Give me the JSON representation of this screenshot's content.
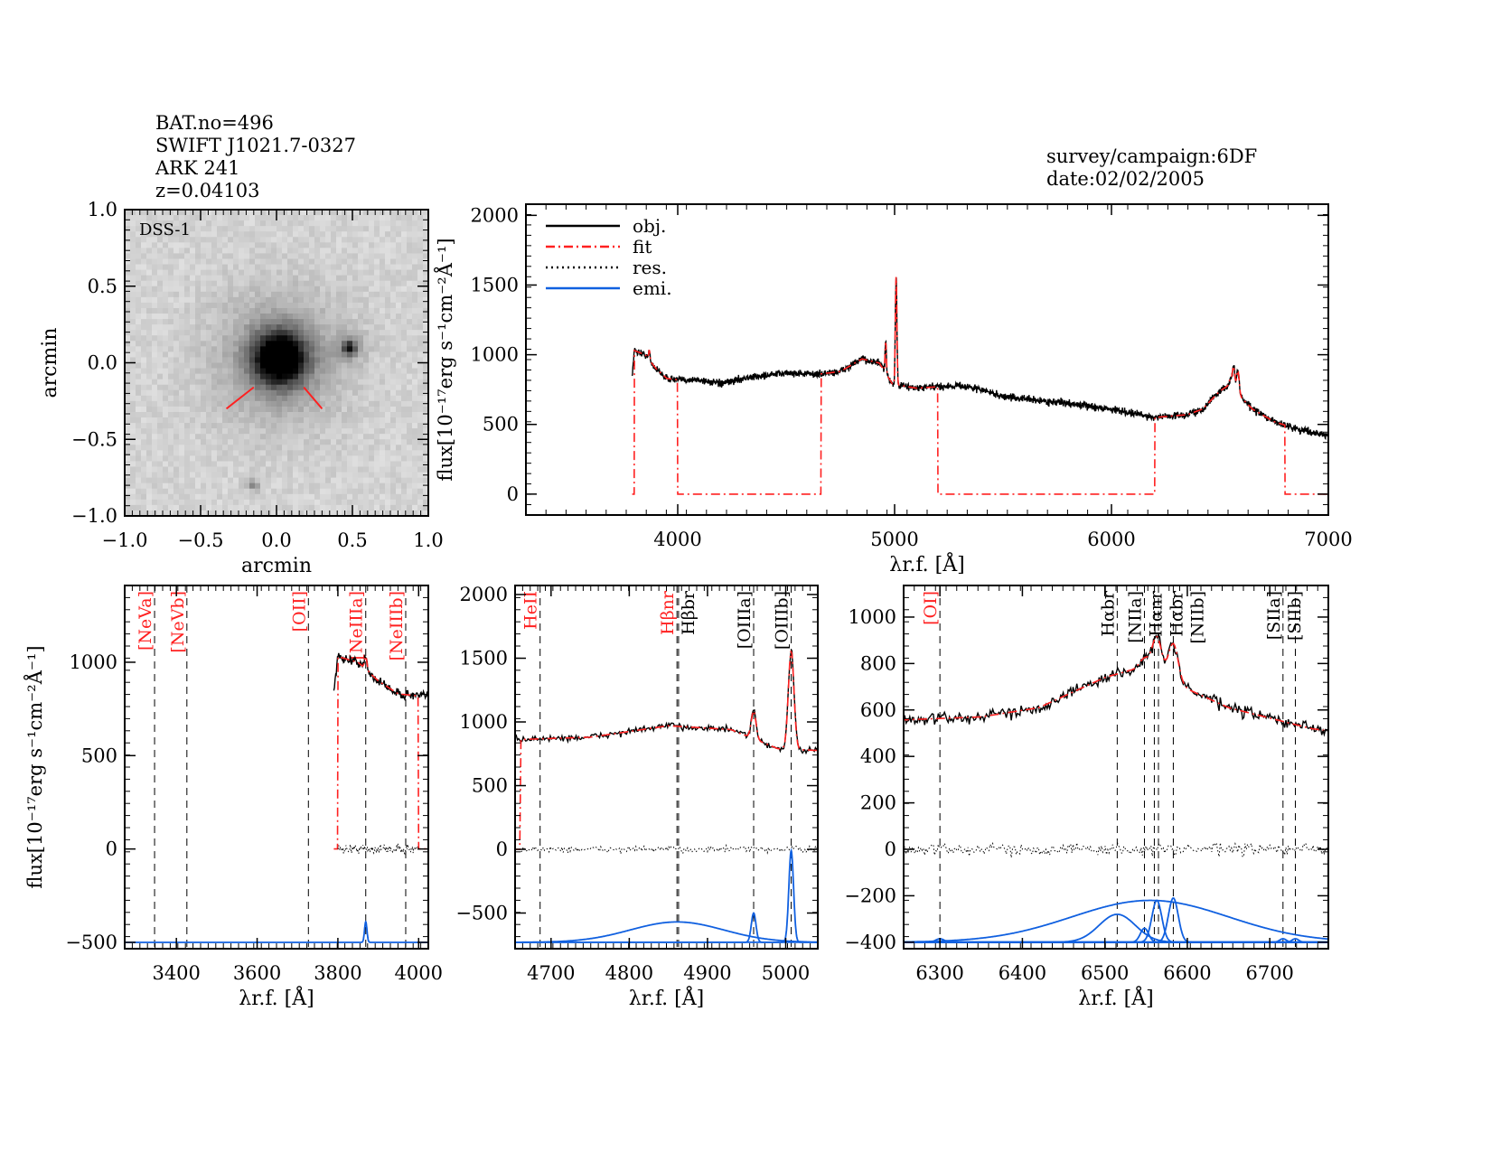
{
  "header": {
    "bat_no": "BAT.no=496",
    "swift": "SWIFT J1021.7-0327",
    "name": "ARK 241",
    "redshift": "z=0.04103",
    "survey": "survey/campaign:6DF",
    "date": "date:02/02/2005"
  },
  "colors": {
    "obj": "#000000",
    "fit": "#ff2020",
    "res": "#000000",
    "emi": "#1060e0",
    "label_red": "#ff2020",
    "label_black": "#000000"
  },
  "chart_data": [
    {
      "id": "image",
      "type": "heatmap",
      "title": "DSS-1",
      "xlabel": "arcmin",
      "ylabel": "arcmin",
      "xlim": [
        -1.0,
        1.0
      ],
      "ylim": [
        -1.0,
        1.0
      ],
      "xticks": [
        "-1.0",
        "-0.5",
        "0.0",
        "0.5",
        "1.0"
      ],
      "yticks": [
        "-1.0",
        "-0.5",
        "0.0",
        "0.5",
        "1.0"
      ],
      "sources": [
        {
          "x": 0.02,
          "y": 0.03,
          "brightness": 1.0,
          "size": 0.12
        },
        {
          "x": 0.48,
          "y": 0.1,
          "brightness": 0.6,
          "size": 0.03
        },
        {
          "x": -0.15,
          "y": -0.8,
          "brightness": 0.3,
          "size": 0.02
        }
      ]
    },
    {
      "id": "full",
      "type": "line",
      "xlabel": "λr.f. [Å]",
      "ylabel": "flux[10⁻¹⁷erg s⁻¹cm⁻²Å⁻¹]",
      "xlim": [
        3300,
        7000
      ],
      "ylim": [
        -150,
        2080
      ],
      "xticks": [
        4000,
        5000,
        6000,
        7000
      ],
      "yticks": [
        0,
        500,
        1000,
        1500,
        2000
      ],
      "legend": [
        "obj.",
        "fit",
        "res.",
        "emi."
      ],
      "legend_position": "top-left"
    },
    {
      "id": "blue",
      "type": "line",
      "xlabel": "λr.f. [Å]",
      "ylabel": "flux[10⁻¹⁷erg s⁻¹cm⁻²Å⁻¹]",
      "xlim": [
        3272,
        4024
      ],
      "ylim": [
        -534,
        1411
      ],
      "xticks": [
        3400,
        3600,
        3800,
        4000
      ],
      "yticks": [
        -500,
        0,
        500,
        1000
      ],
      "lines": [
        {
          "label": "[NeVa]",
          "wave": 3346,
          "color": "red"
        },
        {
          "label": "[NeVb]",
          "wave": 3426,
          "color": "red"
        },
        {
          "label": "[OII]",
          "wave": 3727,
          "color": "red"
        },
        {
          "label": "[NeIIIa]",
          "wave": 3869,
          "color": "red"
        },
        {
          "label": "[NeIIIb]",
          "wave": 3968,
          "color": "red"
        }
      ],
      "emi_baseline": -500,
      "emi_components": [
        {
          "c": 3869,
          "a": 110,
          "s": 3
        }
      ]
    },
    {
      "id": "hbeta",
      "type": "line",
      "xlabel": "λr.f. [Å]",
      "xlim": [
        4654,
        5041
      ],
      "ylim": [
        -780,
        2071
      ],
      "xticks": [
        4700,
        4800,
        4900,
        5000
      ],
      "yticks": [
        -500,
        0,
        500,
        1000,
        1500,
        2000
      ],
      "lines": [
        {
          "label": "HeII",
          "wave": 4686,
          "color": "red"
        },
        {
          "label": "Hβnr",
          "wave": 4861,
          "color": "red"
        },
        {
          "label": "Hβbr",
          "wave": 4863,
          "color": "black"
        },
        {
          "label": "[OIIIa]",
          "wave": 4959,
          "color": "black"
        },
        {
          "label": "[OIIIb]",
          "wave": 5007,
          "color": "black"
        }
      ],
      "emi_baseline": -730,
      "emi_components": [
        {
          "c": 4861,
          "a": 160,
          "s": 60
        },
        {
          "c": 4959,
          "a": 230,
          "s": 3
        },
        {
          "c": 5007,
          "a": 720,
          "s": 3
        }
      ]
    },
    {
      "id": "halpha",
      "type": "line",
      "xlabel": "λr.f. [Å]",
      "xlim": [
        6256,
        6771
      ],
      "ylim": [
        -428,
        1136
      ],
      "xticks": [
        6300,
        6400,
        6500,
        6600,
        6700
      ],
      "yticks": [
        -400,
        -200,
        0,
        200,
        400,
        600,
        800,
        1000
      ],
      "lines": [
        {
          "label": "[OI]",
          "wave": 6300,
          "color": "red"
        },
        {
          "label": "Hαbr",
          "wave": 6515,
          "color": "black"
        },
        {
          "label": "[NIIa]",
          "wave": 6548,
          "color": "black"
        },
        {
          "label": "Hαnr",
          "wave": 6560,
          "color": "black"
        },
        {
          "label": "Hαbr",
          "wave": 6565,
          "color": "black"
        },
        {
          "label": "[NIIb]",
          "wave": 6583,
          "color": "black"
        },
        {
          "label": "[SIIa]",
          "wave": 6716,
          "color": "black"
        },
        {
          "label": "[SIIb]",
          "wave": 6731,
          "color": "black"
        }
      ],
      "emi_baseline": -400,
      "emi_components": [
        {
          "c": 6555,
          "a": 180,
          "s": 95
        },
        {
          "c": 6515,
          "a": 120,
          "s": 22
        },
        {
          "c": 6548,
          "a": 60,
          "s": 5
        },
        {
          "c": 6563,
          "a": 180,
          "s": 6
        },
        {
          "c": 6583,
          "a": 190,
          "s": 6
        },
        {
          "c": 6300,
          "a": 15,
          "s": 5
        },
        {
          "c": 6716,
          "a": 15,
          "s": 4
        },
        {
          "c": 6731,
          "a": 15,
          "s": 4
        }
      ]
    }
  ],
  "model": {
    "continuum": [
      [
        3790,
        850
      ],
      [
        3800,
        1030
      ],
      [
        3850,
        1000
      ],
      [
        3900,
        900
      ],
      [
        3950,
        830
      ],
      [
        4000,
        820
      ],
      [
        4100,
        820
      ],
      [
        4200,
        790
      ],
      [
        4300,
        830
      ],
      [
        4500,
        870
      ],
      [
        4650,
        860
      ],
      [
        4750,
        880
      ],
      [
        4850,
        970
      ],
      [
        4930,
        940
      ],
      [
        4990,
        790
      ],
      [
        5100,
        760
      ],
      [
        5200,
        770
      ],
      [
        5300,
        780
      ],
      [
        5400,
        750
      ],
      [
        5500,
        700
      ],
      [
        5800,
        650
      ],
      [
        6000,
        610
      ],
      [
        6200,
        550
      ],
      [
        6350,
        570
      ],
      [
        6420,
        610
      ],
      [
        6500,
        740
      ],
      [
        6540,
        780
      ],
      [
        6600,
        690
      ],
      [
        6650,
        610
      ],
      [
        6750,
        520
      ],
      [
        6850,
        470
      ],
      [
        7000,
        420
      ]
    ],
    "narrow_lines": [
      {
        "c": 3869,
        "a": 70,
        "s": 3
      },
      {
        "c": 4959,
        "a": 220,
        "s": 3
      },
      {
        "c": 5007,
        "a": 780,
        "s": 3.5
      },
      {
        "c": 6563,
        "a": 170,
        "s": 6
      },
      {
        "c": 6583,
        "a": 170,
        "s": 6
      },
      {
        "c": 6548,
        "a": 50,
        "s": 5
      }
    ],
    "fit_gaps": [
      [
        3300,
        3800
      ],
      [
        4000,
        4660
      ],
      [
        5200,
        6200
      ],
      [
        6800,
        7100
      ]
    ],
    "noise": 18
  }
}
